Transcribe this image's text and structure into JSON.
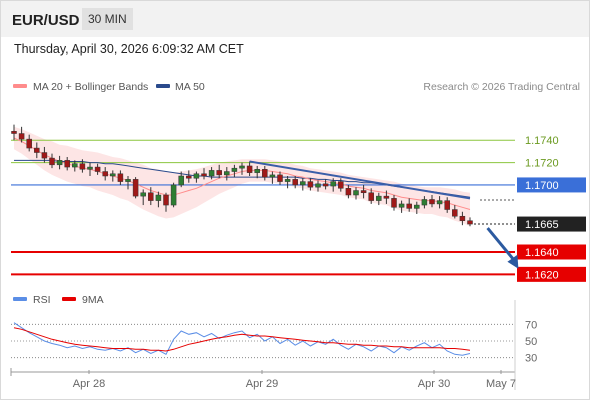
{
  "header": {
    "symbol": "EUR/USD",
    "timeframe": "30 MIN",
    "datetime": "Thursday, April 30, 2026 6:09:32 AM CET"
  },
  "colors": {
    "ma20": "#ff8c8c",
    "bollinger_fill": "#fde2e2",
    "ma50": "#2a4a8c",
    "resistance": "#8cc63f",
    "pivot": "#3a6fd8",
    "support": "#e60000",
    "current": "#222222",
    "trendline": "#3a5ea8",
    "arrow": "#2c5aa0",
    "rsi": "#5b8ee6",
    "rsi_ma": "#e60000"
  },
  "chart_data": [
    {
      "type": "candlestick",
      "legend": [
        {
          "name": "MA 20 + Bollinger Bands",
          "color": "#ff8c8c"
        },
        {
          "name": "MA 50",
          "color": "#2a4a8c"
        }
      ],
      "credit": "Research © 2026 Trading Central",
      "x_ticks": [
        "Apr 28",
        "Apr 29",
        "Apr 30",
        "May 7"
      ],
      "levels": [
        {
          "value": 1.174,
          "label": "1.1740",
          "kind": "resistance"
        },
        {
          "value": 1.172,
          "label": "1.1720",
          "kind": "resistance"
        },
        {
          "value": 1.17,
          "label": "1.1700",
          "kind": "pivot"
        },
        {
          "value": 1.1665,
          "label": "1.1665",
          "kind": "current"
        },
        {
          "value": 1.164,
          "label": "1.1640",
          "kind": "support"
        },
        {
          "value": 1.162,
          "label": "1.1620",
          "kind": "support"
        }
      ],
      "trendline": {
        "from": {
          "i": 31,
          "v": 1.1721
        },
        "to": {
          "i": 60,
          "v": 1.1688
        }
      },
      "forecast_arrow": {
        "from": {
          "i": 61,
          "v": 1.1665
        },
        "to": {
          "i": 64,
          "v": 1.1625
        }
      },
      "ylim": [
        1.1606,
        1.1776
      ],
      "candles": [
        [
          1.1748,
          1.1754,
          1.174,
          1.1746
        ],
        [
          1.1746,
          1.1752,
          1.1738,
          1.1741
        ],
        [
          1.1741,
          1.1745,
          1.173,
          1.1733
        ],
        [
          1.1733,
          1.1738,
          1.1724,
          1.1729
        ],
        [
          1.1729,
          1.1734,
          1.172,
          1.1724
        ],
        [
          1.1724,
          1.1728,
          1.1715,
          1.1718
        ],
        [
          1.1718,
          1.1726,
          1.1714,
          1.1722
        ],
        [
          1.1722,
          1.1725,
          1.1713,
          1.1716
        ],
        [
          1.1716,
          1.1722,
          1.1712,
          1.1719
        ],
        [
          1.1719,
          1.1723,
          1.1711,
          1.1714
        ],
        [
          1.1714,
          1.172,
          1.1708,
          1.1716
        ],
        [
          1.1716,
          1.1719,
          1.1709,
          1.1712
        ],
        [
          1.1712,
          1.1716,
          1.1704,
          1.1708
        ],
        [
          1.1708,
          1.1713,
          1.1703,
          1.171
        ],
        [
          1.171,
          1.1713,
          1.17,
          1.1703
        ],
        [
          1.1703,
          1.1708,
          1.1696,
          1.1705
        ],
        [
          1.1705,
          1.1707,
          1.1688,
          1.169
        ],
        [
          1.169,
          1.1696,
          1.1682,
          1.1693
        ],
        [
          1.1693,
          1.1698,
          1.1682,
          1.1686
        ],
        [
          1.1686,
          1.1694,
          1.168,
          1.1691
        ],
        [
          1.1691,
          1.1693,
          1.1676,
          1.1682
        ],
        [
          1.1682,
          1.1702,
          1.168,
          1.17
        ],
        [
          1.17,
          1.1712,
          1.1698,
          1.1708
        ],
        [
          1.1708,
          1.1713,
          1.1702,
          1.1706
        ],
        [
          1.1706,
          1.1712,
          1.1702,
          1.171
        ],
        [
          1.171,
          1.1715,
          1.1705,
          1.1708
        ],
        [
          1.1708,
          1.1716,
          1.1705,
          1.1713
        ],
        [
          1.1713,
          1.1718,
          1.1706,
          1.1709
        ],
        [
          1.1709,
          1.1716,
          1.1704,
          1.1712
        ],
        [
          1.1712,
          1.1718,
          1.1707,
          1.1715
        ],
        [
          1.1715,
          1.172,
          1.1709,
          1.1717
        ],
        [
          1.1717,
          1.1721,
          1.1708,
          1.1711
        ],
        [
          1.1711,
          1.1717,
          1.1706,
          1.1714
        ],
        [
          1.1714,
          1.1717,
          1.1704,
          1.1707
        ],
        [
          1.1707,
          1.1712,
          1.1701,
          1.1709
        ],
        [
          1.1709,
          1.1712,
          1.17,
          1.1703
        ],
        [
          1.1703,
          1.1708,
          1.1697,
          1.1705
        ],
        [
          1.1705,
          1.1708,
          1.1697,
          1.17
        ],
        [
          1.17,
          1.1706,
          1.1695,
          1.1703
        ],
        [
          1.1703,
          1.1706,
          1.1695,
          1.1698
        ],
        [
          1.1698,
          1.1704,
          1.1694,
          1.1701
        ],
        [
          1.1701,
          1.1705,
          1.1696,
          1.1699
        ],
        [
          1.1699,
          1.1706,
          1.1694,
          1.1703
        ],
        [
          1.1703,
          1.1706,
          1.1694,
          1.1697
        ],
        [
          1.1697,
          1.17,
          1.1688,
          1.1691
        ],
        [
          1.1691,
          1.1698,
          1.1687,
          1.1695
        ],
        [
          1.1695,
          1.17,
          1.1688,
          1.1693
        ],
        [
          1.1693,
          1.1697,
          1.1683,
          1.1686
        ],
        [
          1.1686,
          1.1693,
          1.1682,
          1.169
        ],
        [
          1.169,
          1.1695,
          1.1683,
          1.1688
        ],
        [
          1.1688,
          1.1691,
          1.1677,
          1.168
        ],
        [
          1.168,
          1.1686,
          1.1675,
          1.1683
        ],
        [
          1.1683,
          1.1688,
          1.1676,
          1.1679
        ],
        [
          1.1679,
          1.1685,
          1.1674,
          1.1682
        ],
        [
          1.1682,
          1.169,
          1.1679,
          1.1687
        ],
        [
          1.1687,
          1.1691,
          1.168,
          1.1683
        ],
        [
          1.1683,
          1.169,
          1.1679,
          1.1686
        ],
        [
          1.1686,
          1.1689,
          1.1675,
          1.1678
        ],
        [
          1.1678,
          1.1682,
          1.167,
          1.1672
        ],
        [
          1.1672,
          1.1676,
          1.1664,
          1.1668
        ],
        [
          1.1668,
          1.1671,
          1.1663,
          1.1665
        ]
      ],
      "ma20": [
        1.1742,
        1.1739,
        1.1735,
        1.1731,
        1.1727,
        1.1724,
        1.1721,
        1.1719,
        1.1717,
        1.1715,
        1.1714,
        1.1712,
        1.171,
        1.1708,
        1.1706,
        1.1704,
        1.1701,
        1.1698,
        1.1695,
        1.1693,
        1.1691,
        1.1691,
        1.1693,
        1.1695,
        1.1697,
        1.17,
        1.1703,
        1.1706,
        1.1708,
        1.171,
        1.1712,
        1.1713,
        1.1713,
        1.1713,
        1.1712,
        1.1711,
        1.171,
        1.1708,
        1.1707,
        1.1705,
        1.1704,
        1.1703,
        1.1702,
        1.1701,
        1.1699,
        1.1698,
        1.1697,
        1.1695,
        1.1694,
        1.1693,
        1.1691,
        1.1689,
        1.1688,
        1.1687,
        1.1686,
        1.1686,
        1.1685,
        1.1684,
        1.1682,
        1.168,
        1.1678
      ],
      "bb_width": [
        0.001,
        0.0011,
        0.0012,
        0.0013,
        0.0014,
        0.0015,
        0.0015,
        0.0016,
        0.0016,
        0.0016,
        0.0016,
        0.0017,
        0.0017,
        0.0017,
        0.0018,
        0.0018,
        0.0019,
        0.002,
        0.002,
        0.0021,
        0.0021,
        0.002,
        0.0019,
        0.0018,
        0.0017,
        0.0016,
        0.0015,
        0.0014,
        0.0013,
        0.0012,
        0.0011,
        0.001,
        0.001,
        0.001,
        0.001,
        0.001,
        0.001,
        0.001,
        0.001,
        0.001,
        0.001,
        0.001,
        0.001,
        0.001,
        0.001,
        0.001,
        0.001,
        0.0011,
        0.0011,
        0.0011,
        0.0012,
        0.0012,
        0.0012,
        0.0012,
        0.0012,
        0.0012,
        0.0013,
        0.0013,
        0.0014,
        0.0014,
        0.0015
      ],
      "ma50": [
        1.1722,
        1.1722,
        1.1722,
        1.1722,
        1.1722,
        1.1722,
        1.1721,
        1.1721,
        1.1721,
        1.1721,
        1.172,
        1.172,
        1.1719,
        1.1719,
        1.1718,
        1.1717,
        1.1716,
        1.1715,
        1.1714,
        1.1713,
        1.1712,
        1.1711,
        1.171,
        1.1709,
        1.1708,
        1.1708,
        1.1707,
        1.1707,
        1.1707,
        1.1707,
        1.1707,
        1.1707,
        1.1707,
        1.1707,
        1.1707,
        1.1707,
        1.1707,
        1.1707,
        1.1706,
        1.1706,
        1.1705,
        1.1705,
        1.1704,
        1.1704,
        1.1703,
        1.1703,
        1.1702,
        1.1702,
        1.1701,
        1.17,
        1.1699,
        1.1698,
        1.1697,
        1.1696,
        1.1695,
        1.1694,
        1.1693,
        1.1692,
        1.1691,
        1.169,
        1.1689
      ]
    },
    {
      "type": "line",
      "legend": [
        {
          "name": "RSI",
          "color": "#5b8ee6"
        },
        {
          "name": "9MA",
          "color": "#e60000"
        }
      ],
      "ylim": [
        20,
        80
      ],
      "y_ticks": [
        "70",
        "50",
        "30"
      ],
      "series": [
        {
          "name": "RSI",
          "values": [
            72,
            66,
            60,
            55,
            50,
            47,
            45,
            42,
            44,
            41,
            43,
            40,
            39,
            41,
            38,
            42,
            36,
            40,
            35,
            39,
            34,
            52,
            62,
            58,
            60,
            55,
            59,
            53,
            57,
            60,
            62,
            54,
            58,
            50,
            55,
            47,
            52,
            45,
            50,
            44,
            49,
            46,
            52,
            45,
            40,
            46,
            43,
            38,
            44,
            42,
            36,
            43,
            39,
            44,
            48,
            42,
            46,
            38,
            34,
            33,
            35
          ]
        },
        {
          "name": "9MA",
          "values": [
            66,
            64,
            61,
            58,
            55,
            52,
            50,
            48,
            46,
            45,
            44,
            43,
            42,
            41,
            41,
            41,
            40,
            40,
            39,
            39,
            38,
            40,
            43,
            46,
            48,
            50,
            52,
            54,
            55,
            57,
            58,
            57,
            56,
            56,
            55,
            54,
            53,
            52,
            51,
            50,
            49,
            48,
            48,
            47,
            46,
            46,
            45,
            45,
            44,
            44,
            43,
            43,
            42,
            42,
            42,
            42,
            42,
            41,
            41,
            40,
            39
          ]
        }
      ]
    }
  ]
}
